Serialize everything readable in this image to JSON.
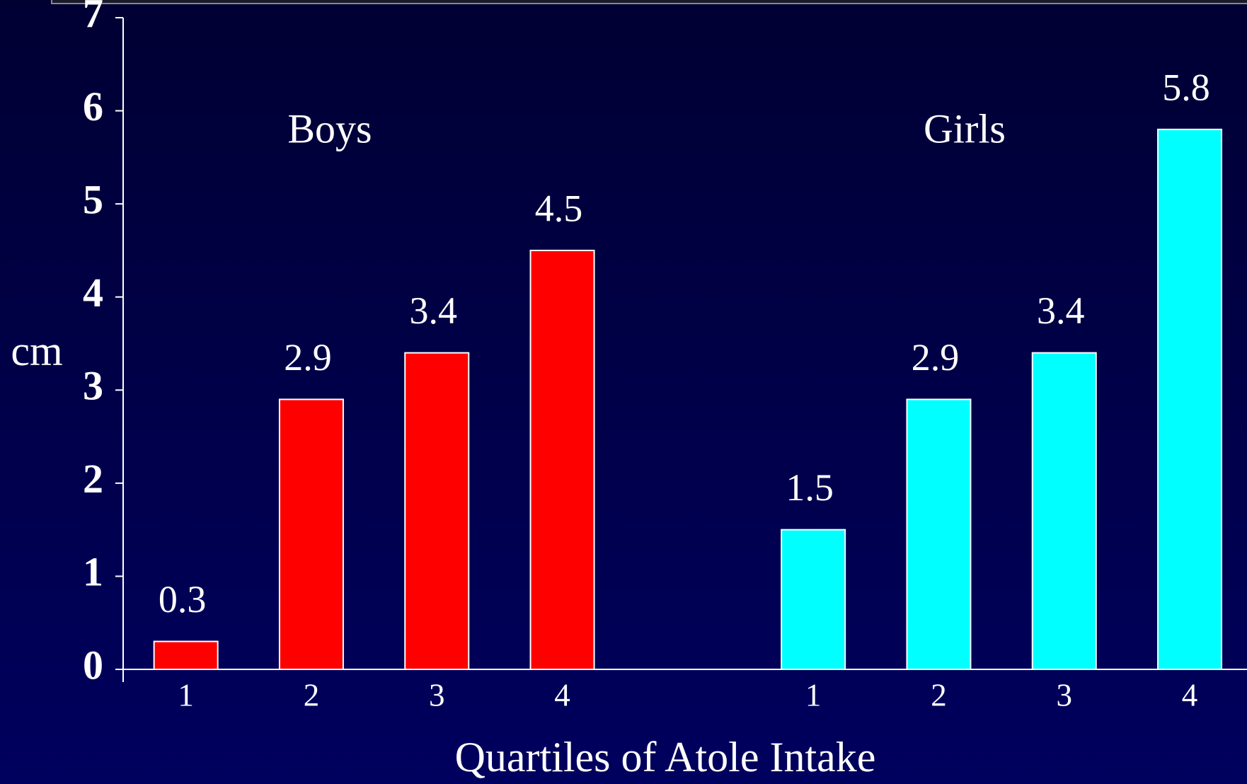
{
  "chart_data": {
    "type": "bar",
    "xlabel": "Quartiles of Atole Intake",
    "ylabel": "cm",
    "categories": [
      "1",
      "2",
      "3",
      "4",
      null,
      "1",
      "2",
      "3",
      "4"
    ],
    "series": [
      {
        "name": "Boys",
        "color": "#ff0000",
        "values": [
          0.3,
          2.9,
          3.4,
          4.5,
          null,
          null,
          null,
          null,
          null
        ]
      },
      {
        "name": "Girls",
        "color": "#00ffff",
        "values": [
          null,
          null,
          null,
          null,
          null,
          1.5,
          2.9,
          3.4,
          5.8
        ]
      }
    ],
    "ylim": [
      0,
      7
    ],
    "yticks": [
      0,
      1,
      2,
      3,
      4,
      5,
      6,
      7
    ],
    "grid": false
  }
}
